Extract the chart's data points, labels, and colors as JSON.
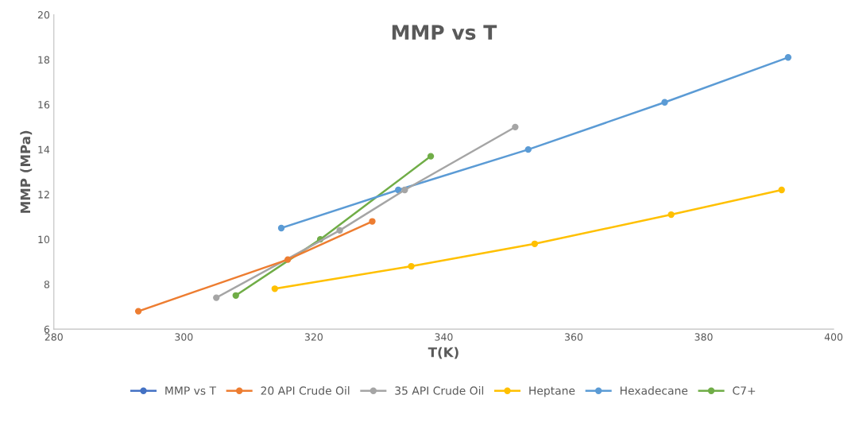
{
  "chart_data": {
    "type": "line",
    "title": "MMP vs T",
    "xlabel": "T(K)",
    "ylabel": "MMP (MPa)",
    "xlim": [
      280,
      400
    ],
    "xticks": [
      280,
      300,
      320,
      340,
      360,
      380,
      400
    ],
    "ylim": [
      6,
      20
    ],
    "yticks": [
      6,
      8,
      10,
      12,
      14,
      16,
      18,
      20
    ],
    "grid": false,
    "legend": "bottom",
    "marker": "circle",
    "line_style": "solid",
    "series": [
      {
        "name": "MMP vs T",
        "color": "#4472c4"
      },
      {
        "name": "20 API Crude Oil",
        "color": "#ed7d31",
        "x": [
          293,
          316,
          329
        ],
        "values": [
          6.8,
          9.1,
          10.8
        ]
      },
      {
        "name": "35 API Crude Oil",
        "color": "#a5a5a5",
        "x": [
          305,
          324,
          334,
          351
        ],
        "values": [
          7.4,
          10.4,
          12.2,
          15.0
        ]
      },
      {
        "name": "Heptane",
        "color": "#ffc000",
        "x": [
          314,
          335,
          354,
          375,
          392
        ],
        "values": [
          7.8,
          8.8,
          9.8,
          11.1,
          12.2
        ]
      },
      {
        "name": "Hexadecane",
        "color": "#5b9bd5",
        "x": [
          315,
          333,
          353,
          374,
          393
        ],
        "values": [
          10.5,
          12.2,
          14.0,
          16.1,
          18.1
        ]
      },
      {
        "name": "C7+",
        "color": "#70ad47",
        "x": [
          308,
          321,
          338
        ],
        "values": [
          7.5,
          10.0,
          13.7
        ]
      }
    ]
  }
}
